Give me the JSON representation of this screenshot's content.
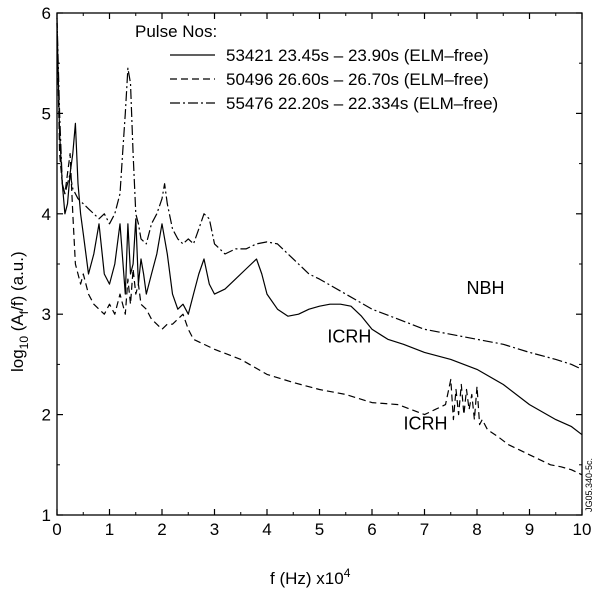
{
  "chart_data": {
    "type": "line",
    "title": "",
    "xlabel": "f (Hz) x10",
    "xlabel_exp": "4",
    "ylabel_main": "log",
    "ylabel_sub": "10",
    "ylabel_mid": " (A",
    "ylabel_sub2": "f",
    "ylabel_end": "/f) (a.u.)",
    "xlim": [
      0,
      10
    ],
    "ylim": [
      1,
      6
    ],
    "xticks": [
      "0",
      "1",
      "2",
      "3",
      "4",
      "5",
      "6",
      "7",
      "8",
      "9",
      "10"
    ],
    "yticks": [
      "1",
      "2",
      "3",
      "4",
      "5",
      "6"
    ],
    "grid": false,
    "legend_title": "Pulse Nos:",
    "legend_position": "top-right",
    "series": [
      {
        "name": "53421 23.45s – 23.90s (ELM–free)",
        "style": "solid",
        "x": [
          0,
          0.05,
          0.1,
          0.15,
          0.2,
          0.25,
          0.3,
          0.35,
          0.4,
          0.45,
          0.5,
          0.6,
          0.7,
          0.8,
          0.9,
          1.0,
          1.1,
          1.2,
          1.3,
          1.35,
          1.4,
          1.45,
          1.5,
          1.55,
          1.6,
          1.65,
          1.7,
          1.8,
          1.9,
          2.0,
          2.1,
          2.2,
          2.3,
          2.4,
          2.5,
          2.6,
          2.7,
          2.8,
          2.9,
          3.0,
          3.2,
          3.4,
          3.6,
          3.8,
          3.9,
          4.0,
          4.2,
          4.4,
          4.6,
          4.8,
          5.0,
          5.2,
          5.4,
          5.6,
          5.8,
          6.0,
          6.3,
          6.6,
          7.0,
          7.5,
          8.0,
          8.5,
          9.0,
          9.5,
          9.8,
          10
        ],
        "y": [
          5.9,
          4.8,
          4.3,
          4.0,
          4.1,
          4.4,
          4.6,
          4.9,
          4.3,
          4.0,
          3.8,
          3.4,
          3.6,
          3.9,
          3.4,
          3.3,
          3.5,
          3.9,
          3.2,
          3.9,
          3.4,
          3.5,
          3.95,
          3.3,
          3.55,
          3.4,
          3.2,
          3.4,
          3.6,
          3.9,
          3.6,
          3.2,
          3.05,
          3.1,
          3.0,
          3.2,
          3.4,
          3.55,
          3.3,
          3.2,
          3.25,
          3.35,
          3.45,
          3.55,
          3.4,
          3.2,
          3.05,
          2.98,
          3.0,
          3.05,
          3.08,
          3.1,
          3.1,
          3.08,
          2.98,
          2.85,
          2.75,
          2.7,
          2.62,
          2.55,
          2.45,
          2.3,
          2.1,
          1.95,
          1.88,
          1.8
        ]
      },
      {
        "name": "50496 26.60s – 26.70s (ELM–free)",
        "style": "dashed",
        "x": [
          0,
          0.05,
          0.1,
          0.15,
          0.2,
          0.25,
          0.3,
          0.35,
          0.4,
          0.45,
          0.5,
          0.6,
          0.7,
          0.8,
          0.9,
          1.0,
          1.1,
          1.2,
          1.3,
          1.35,
          1.4,
          1.45,
          1.5,
          1.55,
          1.6,
          1.7,
          1.8,
          1.9,
          2.0,
          2.1,
          2.2,
          2.3,
          2.4,
          2.5,
          2.6,
          2.8,
          3.0,
          3.5,
          4.0,
          4.5,
          5.0,
          5.5,
          6.0,
          6.5,
          7.0,
          7.2,
          7.4,
          7.5,
          7.55,
          7.6,
          7.65,
          7.7,
          7.75,
          7.8,
          7.85,
          7.9,
          7.95,
          8.0,
          8.05,
          8.1,
          8.2,
          8.4,
          8.6,
          8.8,
          9.0,
          9.2,
          9.4,
          9.6,
          9.8,
          10
        ],
        "y": [
          5.9,
          4.6,
          4.3,
          4.2,
          4.4,
          4.6,
          4.0,
          3.5,
          3.4,
          3.3,
          3.4,
          3.2,
          3.1,
          3.05,
          3.0,
          3.1,
          3.0,
          3.2,
          3.0,
          3.35,
          3.1,
          3.45,
          3.2,
          3.3,
          3.1,
          3.05,
          2.95,
          2.9,
          2.85,
          2.9,
          2.9,
          2.95,
          3.0,
          2.85,
          2.75,
          2.7,
          2.65,
          2.55,
          2.4,
          2.32,
          2.25,
          2.2,
          2.12,
          2.1,
          2.0,
          2.05,
          2.1,
          2.35,
          1.95,
          2.25,
          2.0,
          2.3,
          2.0,
          2.25,
          2.05,
          2.2,
          1.95,
          2.28,
          1.9,
          1.95,
          1.85,
          1.78,
          1.7,
          1.65,
          1.6,
          1.55,
          1.5,
          1.48,
          1.45,
          1.4
        ]
      },
      {
        "name": "55476 22.20s – 22.334s (ELM–free)",
        "style": "dash-dot",
        "x": [
          0,
          0.05,
          0.1,
          0.15,
          0.2,
          0.25,
          0.3,
          0.35,
          0.4,
          0.5,
          0.6,
          0.7,
          0.8,
          0.9,
          1.0,
          1.1,
          1.2,
          1.25,
          1.3,
          1.35,
          1.4,
          1.45,
          1.5,
          1.55,
          1.6,
          1.7,
          1.8,
          1.9,
          2.0,
          2.05,
          2.1,
          2.2,
          2.3,
          2.4,
          2.5,
          2.6,
          2.7,
          2.8,
          2.9,
          3.0,
          3.1,
          3.2,
          3.4,
          3.6,
          3.8,
          4.0,
          4.2,
          4.4,
          4.6,
          4.8,
          5.0,
          5.5,
          6.0,
          6.5,
          7.0,
          7.5,
          8.0,
          8.5,
          9.0,
          9.5,
          9.8,
          10
        ],
        "y": [
          5.95,
          5.0,
          4.3,
          4.2,
          4.3,
          4.4,
          4.25,
          4.2,
          4.15,
          4.1,
          4.05,
          4.0,
          3.95,
          4.0,
          3.9,
          4.0,
          4.2,
          4.6,
          5.0,
          5.45,
          5.3,
          4.6,
          4.0,
          3.9,
          3.75,
          3.7,
          3.9,
          4.0,
          4.15,
          4.3,
          4.1,
          3.85,
          3.75,
          3.7,
          3.75,
          3.7,
          3.85,
          4.0,
          3.95,
          3.7,
          3.65,
          3.6,
          3.65,
          3.65,
          3.7,
          3.72,
          3.7,
          3.6,
          3.5,
          3.4,
          3.35,
          3.2,
          3.05,
          2.95,
          2.85,
          2.8,
          2.75,
          2.7,
          2.62,
          2.55,
          2.5,
          2.45
        ]
      }
    ],
    "annotations": [
      {
        "text": "NBH",
        "x": 7.8,
        "y": 3.2
      },
      {
        "text": "ICRH",
        "x": 5.15,
        "y": 2.72
      },
      {
        "text": "ICRH",
        "x": 6.6,
        "y": 1.85
      }
    ],
    "code_label": "JG05.340-5c."
  }
}
